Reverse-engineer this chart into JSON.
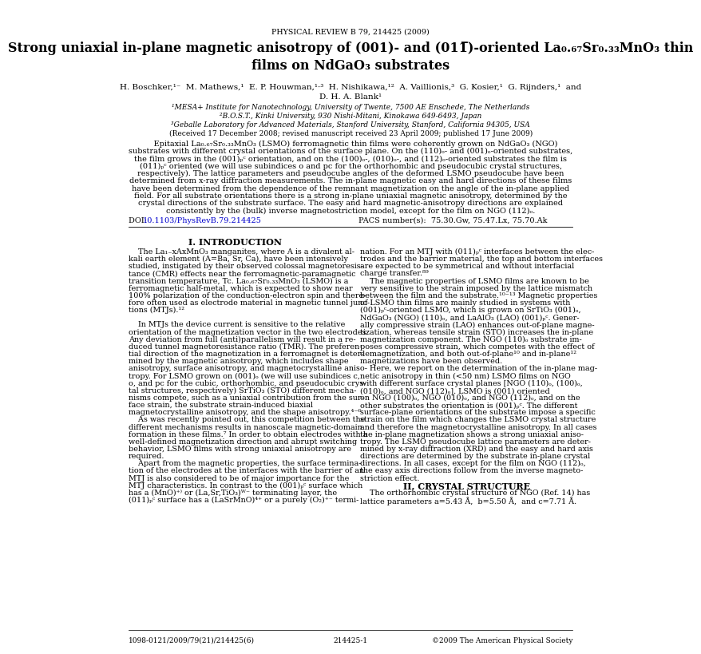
{
  "journal_header": "PHYSICAL REVIEW B 79, 214425 (2009)",
  "title_full": "Strong uniaxial in-plane magnetic anisotropy of (001)- and (011̅)-oriented La₀.₆₇Sr₀.₃₃MnO₃ thin\nfilms on NdGaO₃ substrates",
  "authors_line1": "H. Boschker,¹⁻  M. Mathews,¹  E. P. Houwman,¹·³  H. Nishikawa,¹²  A. Vaillionis,³  G. Kosier,¹  G. Rijnders,¹  and",
  "authors_line2": "D. H. A. Blank¹",
  "affil1": "¹MESA+ Institute for Nanotechnology, University of Twente, 7500 AE Enschede, The Netherlands",
  "affil2": "²B.O.S.T., Kinki University, 930 Nishi-Mitani, Kinokawa 649-6493, Japan",
  "affil3": "³Geballe Laboratory for Advanced Materials, Stanford University, Stanford, California 94305, USA",
  "received": "(Received 17 December 2008; revised manuscript received 23 April 2009; published 17 June 2009)",
  "doi_label": "DOI: ",
  "doi_url": "10.1103/PhysRevB.79.214425",
  "pacs": "PACS number(s):  75.30.Gw, 75.47.Lx, 75.70.Ak",
  "section1_title": "I. INTRODUCTION",
  "section2_title": "II. CRYSTAL STRUCTURE",
  "footer_left": "1098-0121/2009/79(21)/214425(6)",
  "footer_center": "214425-1",
  "footer_right": "©2009 The American Physical Society",
  "bg_color": "#ffffff",
  "text_color": "#000000",
  "link_color": "#0000cd",
  "abstract_lines": [
    "    Epitaxial La₀.₆₇Sr₀.₃₃MnO₃ (LSMO) ferromagnetic thin films were coherently grown on NdGaO₃ (NGO)",
    "substrates with different crystal orientations of the surface plane. On the (110)ₒ- and (001)ₒ-oriented substrates,",
    "the film grows in the (001)ₚᶜ orientation, and on the (100)ₒ-, (010)ₒ-, and (112)ₒ-oriented substrates the film is",
    "(011)ₚᶜ oriented (we will use subindices o and pc for the orthorhombic and pseudocubic crystal structures,",
    "respectively). The lattice parameters and pseudocube angles of the deformed LSMO pseudocube have been",
    "determined from x-ray diffraction measurements. The in-plane magnetic easy and hard directions of these films",
    "have been determined from the dependence of the remnant magnetization on the angle of the in-plane applied",
    "field. For all substrate orientations there is a strong in-plane uniaxial magnetic anisotropy, determined by the",
    "crystal directions of the substrate surface. The easy and hard magnetic-anisotropy directions are explained",
    "consistently by the (bulk) inverse magnetostriction model, except for the film on NGO (112)ₒ."
  ],
  "col1_lines": [
    "    The La₁₋xAxMnO₃ manganites, where A is a divalent al-",
    "kali earth element (A=Ba, Sr, Ca), have been intensively",
    "studied, instigated by their observed colossal magnetoresis-",
    "tance (CMR) effects near the ferromagnetic-paramagnetic",
    "transition temperature, Tc. La₀.₆₇Sr₀.₃₃MnO₃ (LSMO) is a",
    "ferromagnetic half-metal, which is expected to show near",
    "100% polarization of the conduction-electron spin and there-",
    "fore often used as electrode material in magnetic tunnel junc-",
    "tions (MTJs).¹²",
    "",
    "    In MTJs the device current is sensitive to the relative",
    "orientation of the magnetization vector in the two electrodes.",
    "Any deviation from full (anti)parallelism will result in a re-",
    "duced tunnel magnetoresistance ratio (TMR). The preferen-",
    "tial direction of the magnetization in a ferromagnet is deter-",
    "mined by the magnetic anisotropy, which includes shape",
    "anisotropy, surface anisotropy, and magnetocrystalline aniso-",
    "tropy. For LSMO grown on (001)ₒ (we will use subindices c,",
    "o, and pc for the cubic, orthorhombic, and pseudocubic crys-",
    "tal structures, respectively) SrTiO₃ (STO) different mecha-",
    "nisms compete, such as a uniaxial contribution from the sur-",
    "face strain, the substrate strain-induced biaxial",
    "magnetocrystalline anisotropy, and the shape anisotropy.⁴⁻⁶",
    "    As was recently pointed out, this competition between the",
    "different mechanisms results in nanoscale magnetic-domain",
    "formation in these films.⁷ In order to obtain electrodes with a",
    "well-defined magnetization direction and abrupt switching",
    "behavior, LSMO films with strong uniaxial anisotropy are",
    "required.",
    "    Apart from the magnetic properties, the surface termina-",
    "tion of the electrodes at the interfaces with the barrier of an",
    "MTJ is also considered to be of major importance for the",
    "MTJ characteristics. In contrast to the (001)ₚᶜ surface which",
    "has a (MnO)⁺⁾ or (La,Sr,TiO₃)ᵂ⁻ terminating layer, the",
    "(011)ₚᶜ surface has a (LaSrMnO)⁴⁺ or a purely (O₂)⁺⁻ termi-"
  ],
  "col2_lines": [
    "nation. For an MTJ with (011)ₚᶜ interfaces between the elec-",
    "trodes and the barrier material, the top and bottom interfaces",
    "are expected to be symmetrical and without interfacial",
    "charge transfer.⁸⁹",
    "    The magnetic properties of LSMO films are known to be",
    "very sensitive to the strain imposed by the lattice mismatch",
    "between the film and the substrate.¹⁰⁻¹³ Magnetic properties",
    "of LSMO thin films are mainly studied in systems with",
    "(001)ₚᶜ-oriented LSMO, which is grown on SrTiO₃ (001)ₒ,",
    "NdGaO₃ (NGO) (110)ₒ, and LaAlO₃ (LAO) (001)ₚᶜ. Gener-",
    "ally compressive strain (LAO) enhances out-of-plane magne-",
    "tization, whereas tensile strain (STO) increases the in-plane",
    "magnetization component. The NGO (110)ₒ substrate im-",
    "poses compressive strain, which competes with the effect of",
    "demagnetization, and both out-of-plane¹⁰ and in-plane¹²",
    "magnetizations have been observed.",
    "    Here, we report on the determination of the in-plane mag-",
    "netic anisotropy in thin (<50 nm) LSMO films on NGO",
    "with different surface crystal planes [NGO (110)ₒ, (100)ₒ,",
    "(010)ₒ, and NGO (112)ₒ]. LSMO is (001) oriented",
    "on NGO (100)ₒ, NGO (010)ₒ, and NGO (112)ₒ, and on the",
    "other substrates the orientation is (001)ₚᶜ. The different",
    "surface-plane orientations of the substrate impose a specific",
    "strain on the film which changes the LSMO crystal structure",
    "and therefore the magnetocrystalline anisotropy. In all cases",
    "the in-plane magnetization shows a strong uniaxial aniso-",
    "tropy. The LSMO pseudocube lattice parameters are deter-",
    "mined by x-ray diffraction (XRD) and the easy and hard axis",
    "directions are determined by the substrate in-plane crystal",
    "directions. In all cases, except for the film on NGO (112)ₒ,",
    "the easy axis directions follow from the inverse magneto-",
    "striction effect.",
    "",
    "    The orthorhombic crystal structure of NGO (Ref. 14) has",
    "lattice parameters a=5.43 Å,  b=5.50 Å,  and c=7.71 Å."
  ]
}
